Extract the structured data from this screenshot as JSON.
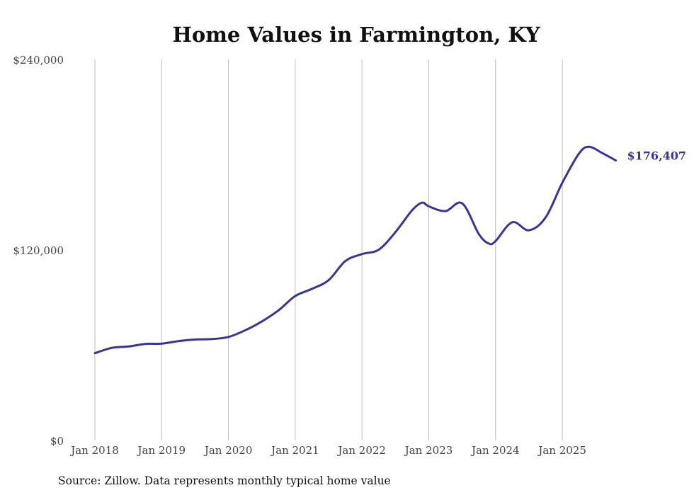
{
  "chart_data": {
    "type": "line",
    "title": "Home Values in Farmington, KY",
    "source": "Source: Zillow. Data represents monthly typical home value",
    "xlabel": "",
    "ylabel": "",
    "ylim": [
      0,
      240000
    ],
    "y_ticks": [
      {
        "value": 0,
        "label": "$0"
      },
      {
        "value": 120000,
        "label": "$120,000"
      },
      {
        "value": 240000,
        "label": "$240,000"
      }
    ],
    "x_ticks": [
      {
        "value": 2018.0,
        "label": "Jan 2018"
      },
      {
        "value": 2019.0,
        "label": "Jan 2019"
      },
      {
        "value": 2020.0,
        "label": "Jan 2020"
      },
      {
        "value": 2021.0,
        "label": "Jan 2021"
      },
      {
        "value": 2022.0,
        "label": "Jan 2022"
      },
      {
        "value": 2023.0,
        "label": "Jan 2023"
      },
      {
        "value": 2024.0,
        "label": "Jan 2024"
      },
      {
        "value": 2025.0,
        "label": "Jan 2025"
      }
    ],
    "xlim": [
      2018.0,
      2025.8
    ],
    "grid": "vertical",
    "line_color": "#3a3590",
    "end_label": "$176,407",
    "series": [
      {
        "name": "Typical home value",
        "points": [
          [
            2018.0,
            55000
          ],
          [
            2018.25,
            58300
          ],
          [
            2018.5,
            59200
          ],
          [
            2018.75,
            60800
          ],
          [
            2019.0,
            61000
          ],
          [
            2019.25,
            62600
          ],
          [
            2019.5,
            63600
          ],
          [
            2019.75,
            63900
          ],
          [
            2020.0,
            65200
          ],
          [
            2020.25,
            69400
          ],
          [
            2020.5,
            75000
          ],
          [
            2020.75,
            82000
          ],
          [
            2021.0,
            91000
          ],
          [
            2021.25,
            95500
          ],
          [
            2021.5,
            101000
          ],
          [
            2021.75,
            113000
          ],
          [
            2022.0,
            117400
          ],
          [
            2022.25,
            120200
          ],
          [
            2022.5,
            131200
          ],
          [
            2022.75,
            145000
          ],
          [
            2022.9,
            149800
          ],
          [
            2023.0,
            147500
          ],
          [
            2023.25,
            144500
          ],
          [
            2023.5,
            149400
          ],
          [
            2023.75,
            130000
          ],
          [
            2023.9,
            124000
          ],
          [
            2024.0,
            125600
          ],
          [
            2024.25,
            137500
          ],
          [
            2024.5,
            132400
          ],
          [
            2024.75,
            140500
          ],
          [
            2025.0,
            162400
          ],
          [
            2025.25,
            180800
          ],
          [
            2025.4,
            185000
          ],
          [
            2025.6,
            181000
          ],
          [
            2025.8,
            176407
          ]
        ]
      }
    ]
  }
}
